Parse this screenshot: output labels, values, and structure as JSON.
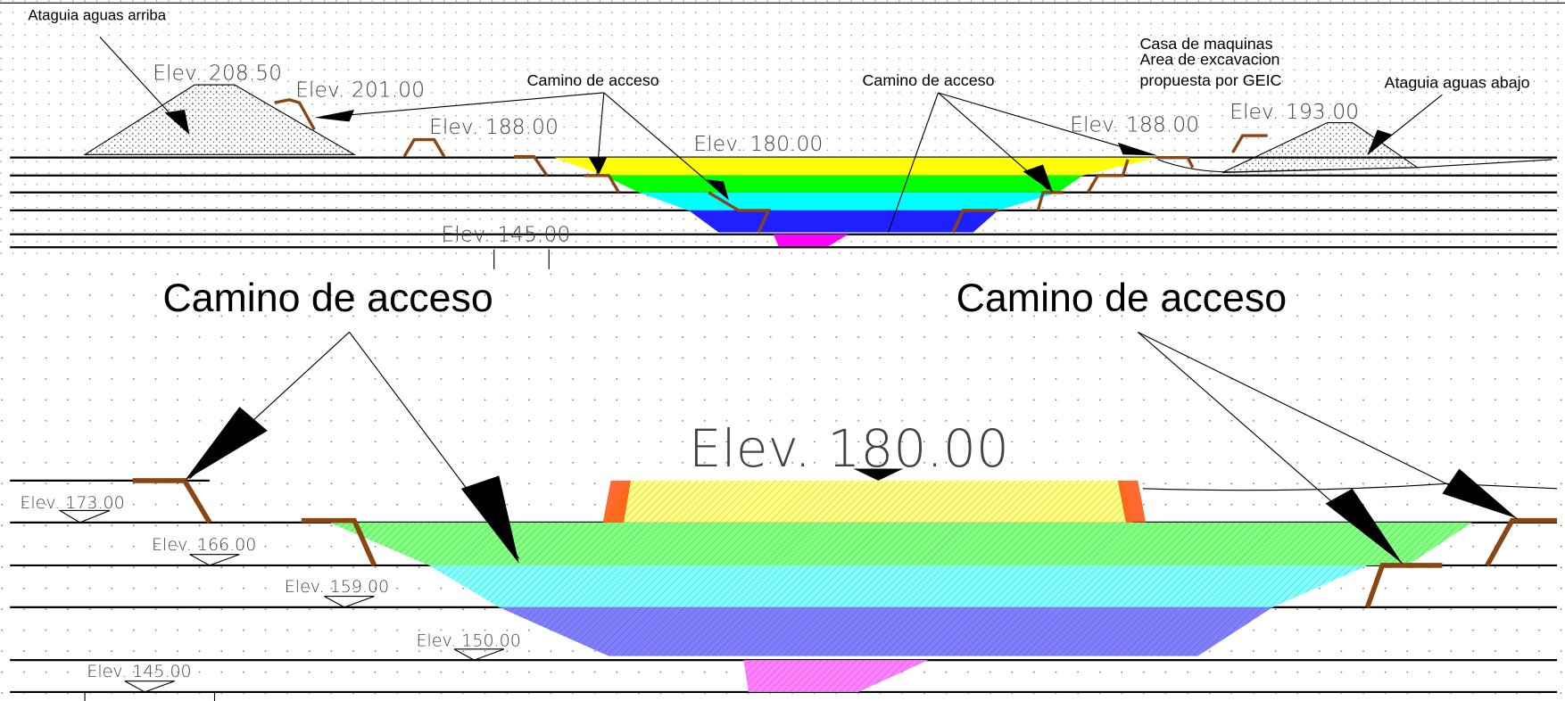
{
  "top_section": {
    "labels": [
      "Ataguia aguas arriba",
      "Elev. 208.50",
      "Elev. 201.00",
      "Elev. 188.00",
      "Camino de acceso",
      "Elev. 180.00",
      "Camino de acceso",
      "Casa de maquinas",
      "Area de excavacion",
      "propuesta por GEIC",
      "Ataguia aguas abajo",
      "Elev. 193.00",
      "Elev. 188.00",
      "Elev. 145.00"
    ]
  },
  "bottom_section": {
    "labels": [
      "Camino de acceso",
      "Camino de acceso",
      "Elev. 180.00",
      "Elev. 173.00",
      "Elev. 166.00",
      "Elev. 159.00",
      "Elev. 150.00",
      "Elev. 145.00"
    ]
  }
}
